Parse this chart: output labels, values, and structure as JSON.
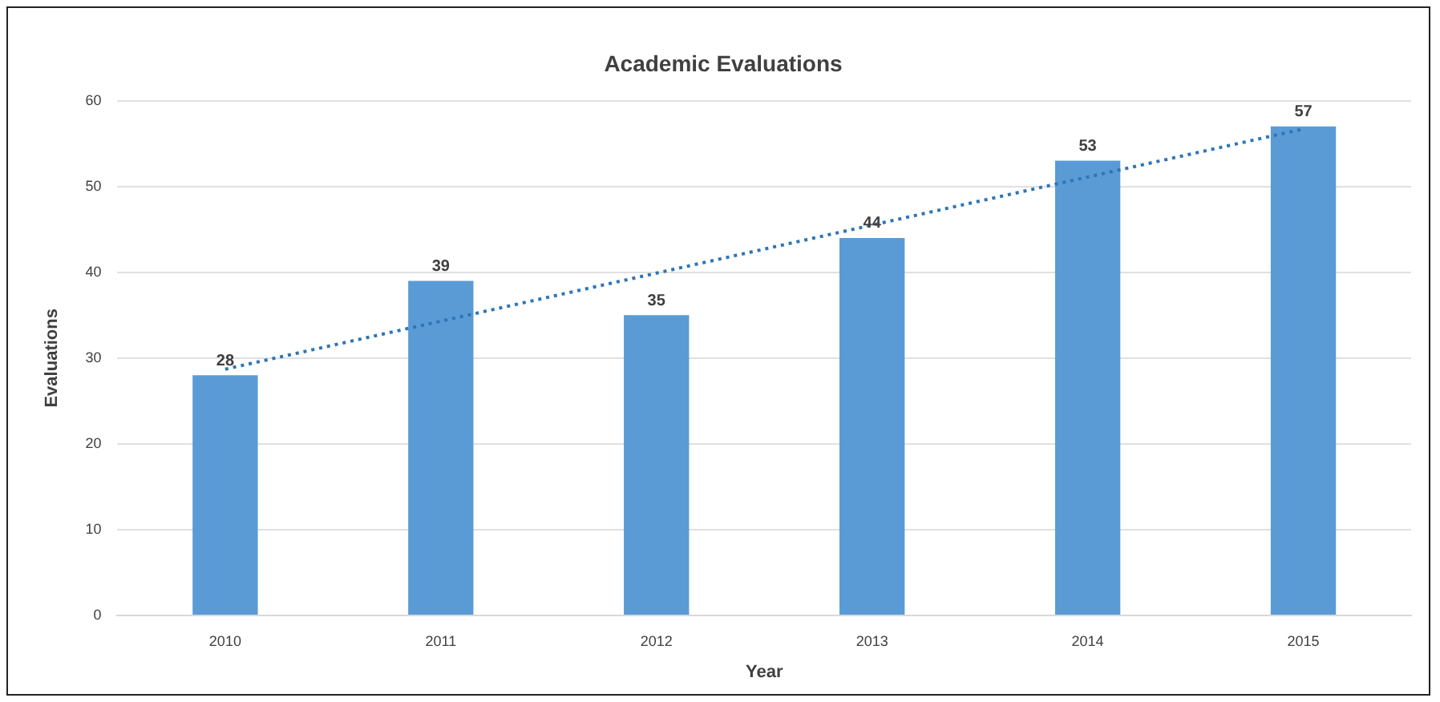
{
  "chart_data": {
    "type": "bar",
    "title": "Academic Evaluations",
    "xlabel": "Year",
    "ylabel": "Evaluations",
    "categories": [
      "2010",
      "2011",
      "2012",
      "2013",
      "2014",
      "2015"
    ],
    "series": [
      {
        "color": "#5b9bd5",
        "values": [
          28,
          39,
          35,
          44,
          53,
          57
        ],
        "value_labels": [
          "28",
          "39",
          "35",
          "44",
          "53",
          "57"
        ]
      },
      {
        "type": "line",
        "color": "#2e75b6",
        "values": [
          28.7,
          34.3,
          39.9,
          45.5,
          51.1,
          56.7
        ],
        "line_style": "dotted",
        "marker": "none"
      }
    ],
    "ylim": [
      0,
      60
    ],
    "yticks": [
      0,
      10,
      20,
      30,
      40,
      50,
      60
    ],
    "grid": "y",
    "legend": false
  }
}
